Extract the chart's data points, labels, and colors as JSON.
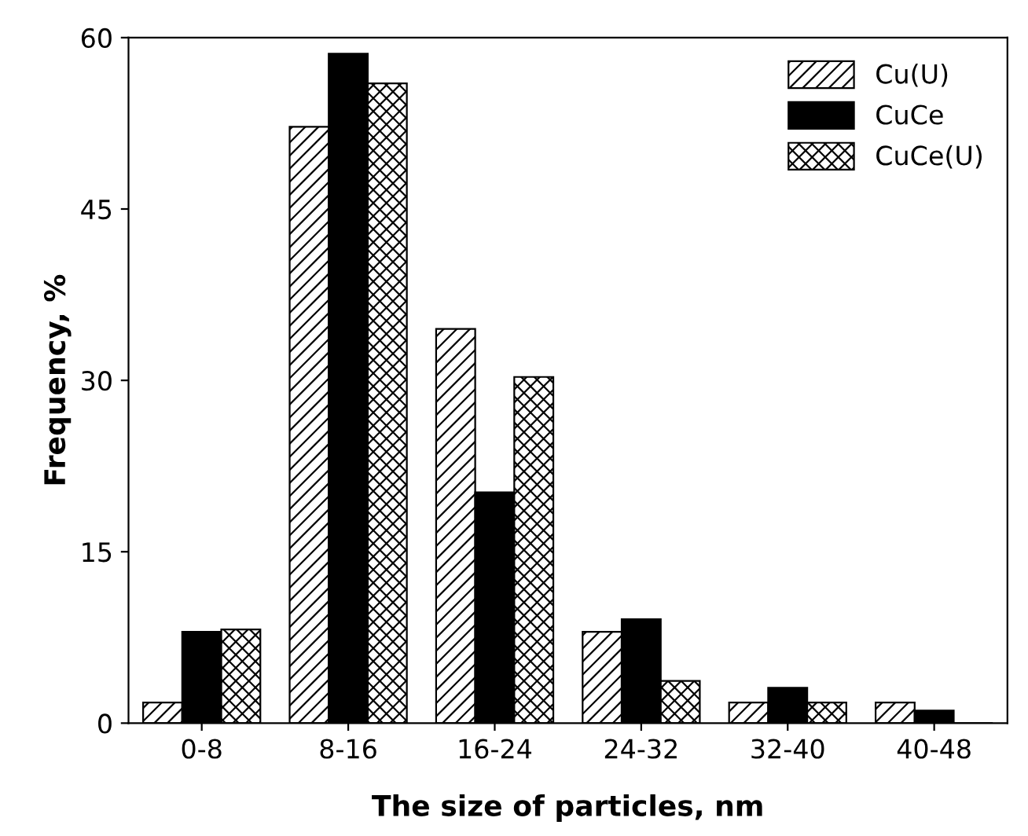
{
  "chart_data": {
    "type": "bar",
    "xlabel": "The size of particles, nm",
    "ylabel": "Frequency, %",
    "categories": [
      "0-8",
      "8-16",
      "16-24",
      "24-32",
      "32-40",
      "40-48"
    ],
    "series": [
      {
        "name": "Cu(U)",
        "color": "#000000",
        "values": [
          1.8,
          52.2,
          34.5,
          8.0,
          1.8,
          1.8
        ]
      },
      {
        "name": "CuCe",
        "color": "#000000",
        "values": [
          8.0,
          58.6,
          20.2,
          9.1,
          3.1,
          1.1
        ]
      },
      {
        "name": "CuCe(U)",
        "color": "#000000",
        "values": [
          8.2,
          56.0,
          30.3,
          3.7,
          1.8,
          0
        ]
      }
    ],
    "ylim": [
      0,
      60
    ],
    "yticks": [
      0,
      15,
      30,
      45,
      60
    ],
    "legend": "top right",
    "grid": false
  }
}
